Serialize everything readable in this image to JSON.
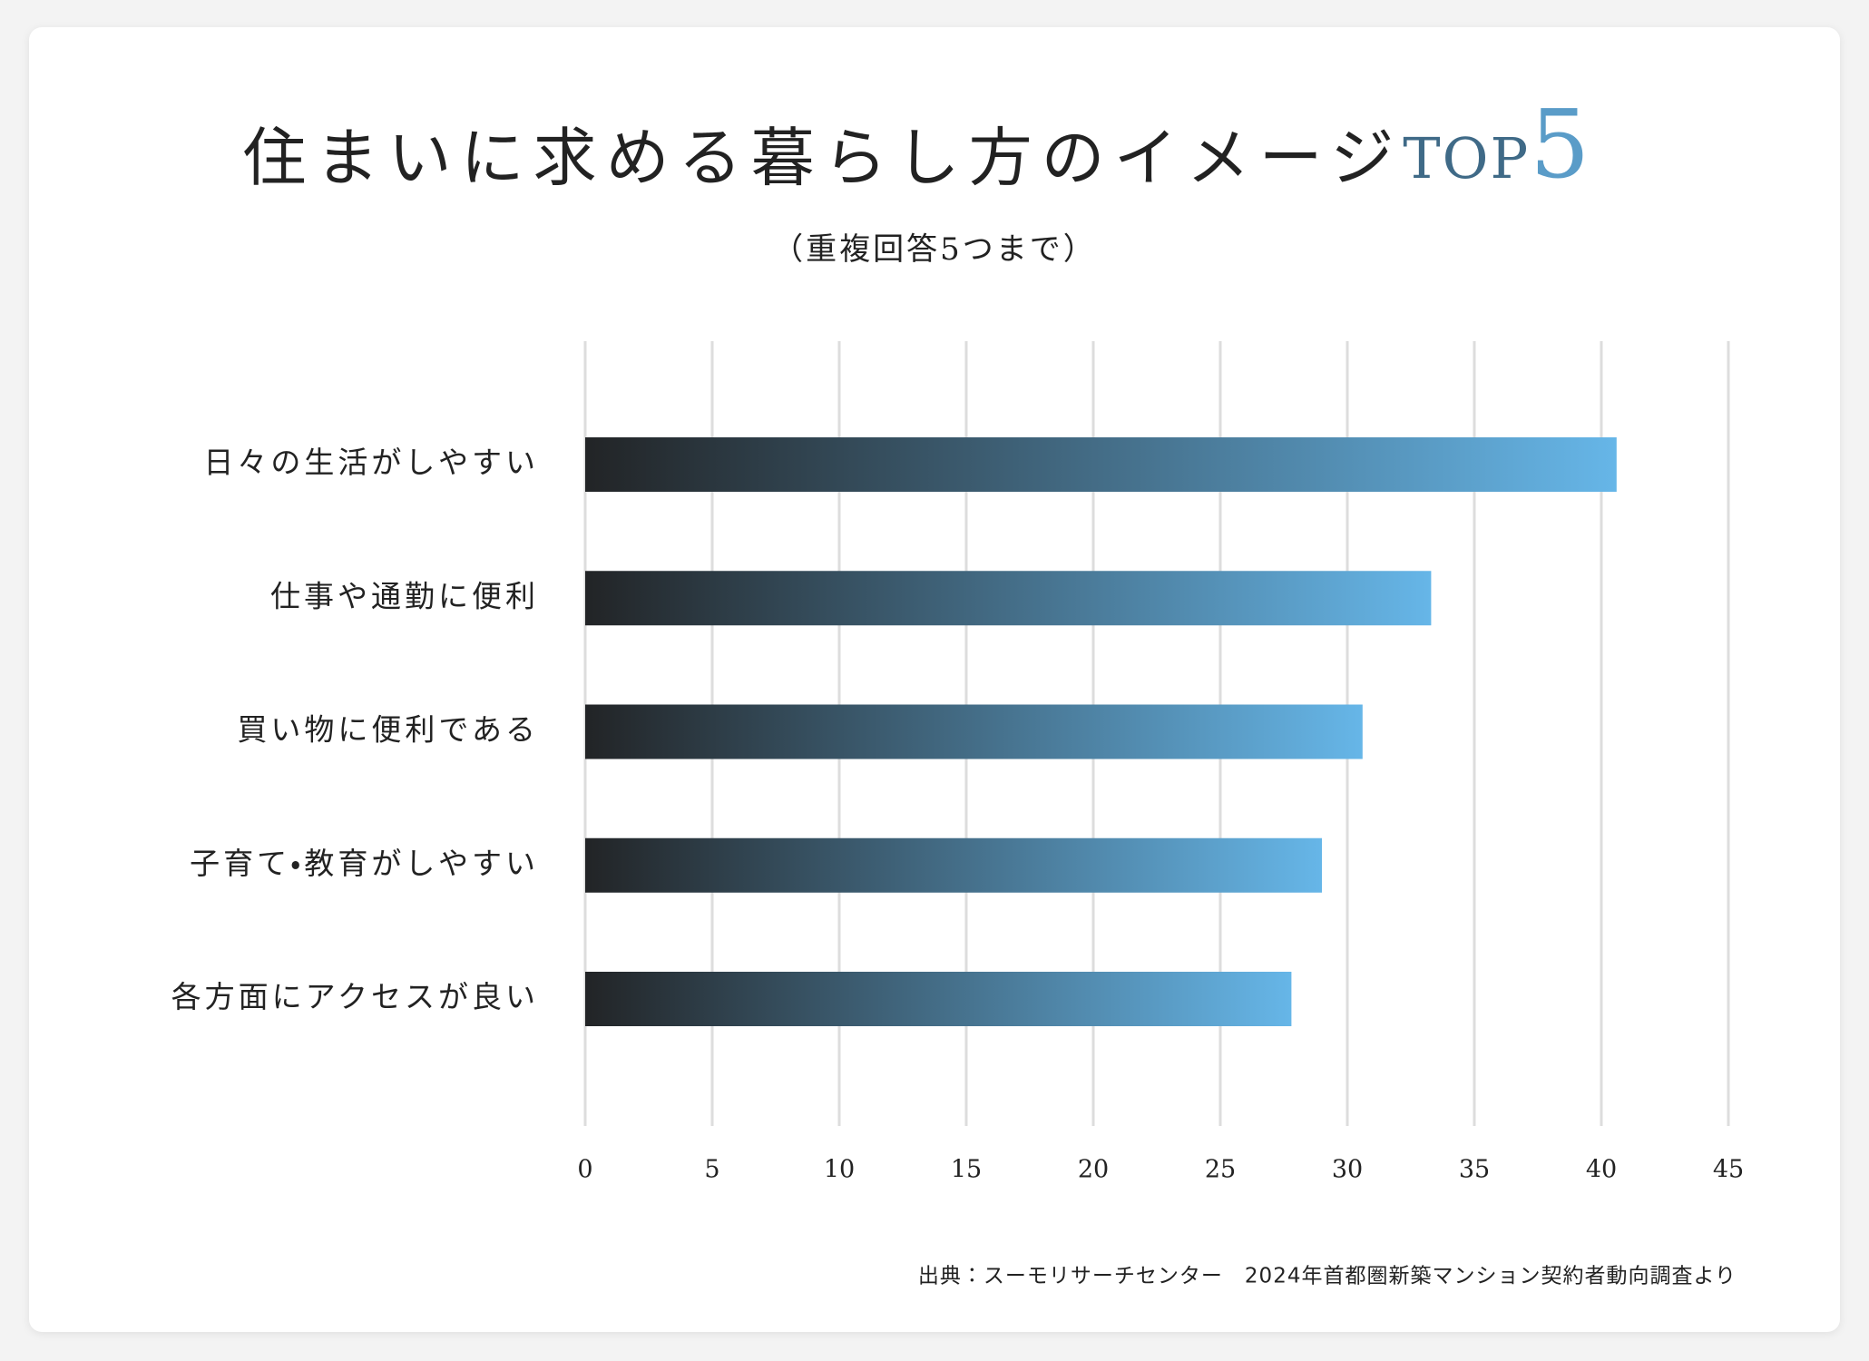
{
  "chart_data": {
    "type": "hbar",
    "title": "住まいに求める暮らし方のイメージ",
    "title_badge": "TOP",
    "title_number": "5",
    "subtitle": "（重複回答5つまで）",
    "categories": [
      "日々の生活がしやすい",
      "仕事や通勤に便利",
      "買い物に便利である",
      "子育て・教育がしやすい",
      "各方面にアクセスが良い"
    ],
    "values": [
      40.6,
      33.3,
      30.6,
      29.0,
      27.8
    ],
    "color_start": "#222426",
    "color_end": "#66b6e8",
    "xlim": [
      0,
      45
    ],
    "xticks": [
      0,
      5,
      10,
      15,
      20,
      25,
      30,
      35,
      40,
      45
    ],
    "grid": true,
    "source": "出典：スーモリサーチセンター　2024年首都圏新築マンション契約者動向調査より"
  }
}
